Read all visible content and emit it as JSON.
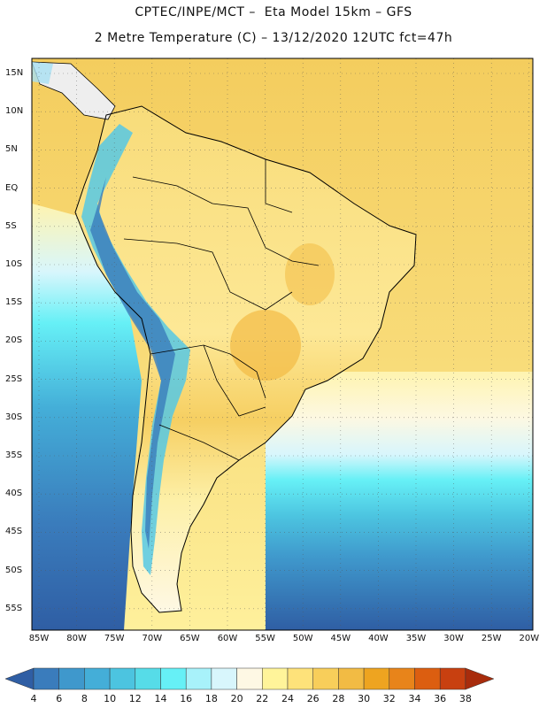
{
  "header": {
    "line1": "CPTEC/INPE/MCT –  Eta Model 15km – GFS",
    "line2": "2 Metre Temperature (C) – 13/12/2020 12UTC fct=47h"
  },
  "map": {
    "lat_labels": [
      "15N",
      "10N",
      "5N",
      "EQ",
      "5S",
      "10S",
      "15S",
      "20S",
      "25S",
      "30S",
      "35S",
      "40S",
      "45S",
      "50S",
      "55S"
    ],
    "lon_labels": [
      "85W",
      "80W",
      "75W",
      "70W",
      "65W",
      "60W",
      "55W",
      "50W",
      "45W",
      "40W",
      "35W",
      "30W",
      "25W",
      "20W"
    ]
  },
  "colorbar": {
    "ticks": [
      "4",
      "6",
      "8",
      "10",
      "12",
      "14",
      "16",
      "18",
      "20",
      "22",
      "24",
      "26",
      "28",
      "30",
      "32",
      "34",
      "36",
      "38"
    ],
    "colors": [
      "#2f5ea4",
      "#3a7cbc",
      "#3f98cc",
      "#44aed8",
      "#4cc4e0",
      "#56dce8",
      "#66f0f6",
      "#a8f2fa",
      "#d8f6fc",
      "#fef8e4",
      "#fff49a",
      "#fee27a",
      "#f8ce5a",
      "#f2bb44",
      "#eea420",
      "#e8841a",
      "#dc5e10",
      "#c84010",
      "#a82c0c"
    ]
  }
}
